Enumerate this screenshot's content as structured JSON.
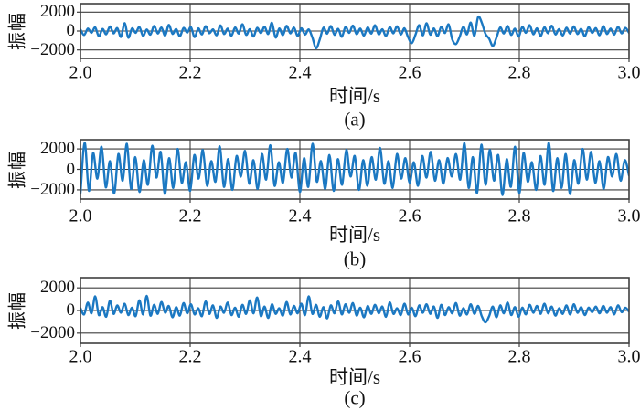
{
  "colors": {
    "line": "#1b78c2",
    "axis": "#3f3f3f",
    "text": "#111111",
    "background": "#ffffff"
  },
  "chart_data": [
    {
      "type": "line",
      "label": "(a)",
      "ylabel": "振幅",
      "xlabel": "时间/s",
      "x_range": [
        2.0,
        3.0
      ],
      "ylim": [
        -2900,
        2900
      ],
      "xticks": [
        2.0,
        2.2,
        2.4,
        2.6,
        2.8,
        3.0
      ],
      "xtick_labels": [
        "2.0",
        "2.2",
        "2.4",
        "2.6",
        "2.8",
        "3.0"
      ],
      "yticks": [
        2000,
        0,
        -2000
      ],
      "ytick_labels": [
        "2000",
        "0",
        "−2000"
      ],
      "grid": true,
      "legend": "none",
      "line_color": "#1b78c2",
      "y": [
        150,
        -420,
        260,
        -180,
        390,
        -560,
        220,
        -340,
        480,
        -250,
        310,
        -620,
        840,
        -710,
        280,
        -190,
        430,
        -520,
        160,
        -380,
        540,
        -260,
        370,
        -480,
        650,
        -300,
        210,
        -550,
        330,
        -170,
        420,
        -640,
        280,
        -360,
        510,
        -230,
        170,
        -440,
        600,
        -320,
        250,
        -500,
        380,
        -270,
        720,
        -410,
        190,
        -580,
        340,
        -220,
        460,
        -310,
        880,
        -690,
        270,
        -430,
        550,
        -240,
        360,
        -510,
        290,
        -380,
        170,
        -700,
        -1820,
        -900,
        350,
        -280,
        520,
        -400,
        230,
        -610,
        440,
        -190,
        570,
        -330,
        260,
        -480,
        390,
        -270,
        610,
        -350,
        180,
        -530,
        420,
        -240,
        500,
        -370,
        290,
        -660,
        -1280,
        -400,
        620,
        -450,
        830,
        -380,
        270,
        -540,
        460,
        -210,
        700,
        -900,
        -1380,
        -600,
        450,
        -350,
        900,
        -500,
        1480,
        900,
        -300,
        -800,
        -1580,
        -700,
        380,
        -260,
        540,
        -420,
        250,
        -590,
        430,
        -180,
        620,
        -340,
        280,
        -510,
        400,
        -230,
        560,
        -360,
        190,
        -470,
        350,
        -270,
        480,
        -320,
        230,
        -560,
        410,
        -200,
        300,
        -440,
        520,
        -310,
        260,
        -380,
        440,
        -250,
        330,
        -180
      ]
    },
    {
      "type": "line",
      "label": "(b)",
      "ylabel": "振幅",
      "xlabel": "时间/s",
      "x_range": [
        2.0,
        3.0
      ],
      "ylim": [
        -2900,
        2900
      ],
      "xticks": [
        2.0,
        2.2,
        2.4,
        2.6,
        2.8,
        3.0
      ],
      "xtick_labels": [
        "2.0",
        "2.2",
        "2.4",
        "2.6",
        "2.8",
        "3.0"
      ],
      "yticks": [
        2000,
        0,
        -2000
      ],
      "ytick_labels": [
        "2000",
        "0",
        "−2000"
      ],
      "grid": true,
      "legend": "none",
      "line_color": "#1b78c2",
      "y": [
        -2300,
        2600,
        -2100,
        1600,
        -900,
        2200,
        -1750,
        800,
        -2350,
        1500,
        -1100,
        2500,
        -1900,
        1200,
        -2200,
        900,
        -1500,
        2300,
        -800,
        1700,
        -2400,
        1100,
        -1800,
        2000,
        -1300,
        700,
        -2100,
        1400,
        -900,
        1900,
        -1600,
        800,
        -1200,
        2250,
        -1700,
        1000,
        -2000,
        1300,
        -700,
        1800,
        -1400,
        900,
        -1900,
        1500,
        -1000,
        2350,
        -1600,
        700,
        -1300,
        2000,
        -800,
        1600,
        -2200,
        1100,
        -1700,
        2500,
        -1200,
        800,
        -1900,
        1400,
        -2100,
        1000,
        -1500,
        1900,
        -700,
        1300,
        -2000,
        900,
        -1600,
        1200,
        -1000,
        2100,
        -1400,
        800,
        -1800,
        1500,
        -900,
        1100,
        -1300,
        700,
        -1600,
        1300,
        -800,
        1700,
        -1100,
        900,
        -1400,
        1100,
        -700,
        1500,
        -1000,
        2550,
        -1800,
        1200,
        -2300,
        2400,
        -1500,
        1900,
        -1100,
        1400,
        -2500,
        1000,
        -1700,
        2200,
        -2300,
        1600,
        -1200,
        700,
        -2000,
        1300,
        -1500,
        2600,
        -2100,
        1100,
        -1800,
        1500,
        -2400,
        900,
        -1400,
        2000,
        -1000,
        1700,
        -1300,
        800,
        -1900,
        1200,
        -700,
        1500,
        -1100,
        900,
        -600
      ]
    },
    {
      "type": "line",
      "label": "(c)",
      "ylabel": "振幅",
      "xlabel": "时间/s",
      "x_range": [
        2.0,
        3.0
      ],
      "ylim": [
        -2900,
        2900
      ],
      "xticks": [
        2.0,
        2.2,
        2.4,
        2.6,
        2.8,
        3.0
      ],
      "xtick_labels": [
        "2.0",
        "2.2",
        "2.4",
        "2.6",
        "2.8",
        "3.0"
      ],
      "yticks": [
        2000,
        0,
        -2000
      ],
      "ytick_labels": [
        "2000",
        "0",
        "−2000"
      ],
      "grid": true,
      "legend": "none",
      "line_color": "#1b78c2",
      "y": [
        200,
        -350,
        700,
        -250,
        1250,
        -400,
        300,
        -550,
        850,
        -300,
        450,
        -200,
        600,
        -400,
        250,
        -500,
        900,
        -350,
        1300,
        -450,
        500,
        -300,
        750,
        -200,
        400,
        -600,
        300,
        -450,
        650,
        -250,
        550,
        -350,
        200,
        -500,
        800,
        -300,
        450,
        -650,
        350,
        -200,
        700,
        -400,
        250,
        -550,
        500,
        -300,
        900,
        -250,
        1150,
        -500,
        350,
        -650,
        550,
        -300,
        200,
        -450,
        750,
        -350,
        400,
        -250,
        600,
        -400,
        1250,
        -300,
        500,
        -550,
        300,
        -700,
        450,
        -250,
        800,
        -350,
        550,
        -200,
        650,
        -450,
        250,
        -600,
        400,
        -300,
        500,
        -250,
        350,
        -550,
        700,
        -300,
        200,
        -400,
        600,
        -350,
        250,
        -500,
        450,
        -200,
        550,
        -300,
        350,
        -650,
        500,
        -400,
        300,
        -250,
        650,
        -450,
        200,
        -350,
        550,
        -300,
        400,
        -500,
        -1050,
        -500,
        350,
        -600,
        450,
        -250,
        700,
        -400,
        300,
        -550,
        250,
        -350,
        500,
        -200,
        400,
        -300,
        600,
        -250,
        350,
        -450,
        200,
        -300,
        450,
        -350,
        550,
        -200,
        300,
        -400,
        250,
        -150,
        350,
        -250,
        400,
        -200,
        300,
        -350,
        450,
        -150,
        250,
        -100
      ]
    }
  ]
}
